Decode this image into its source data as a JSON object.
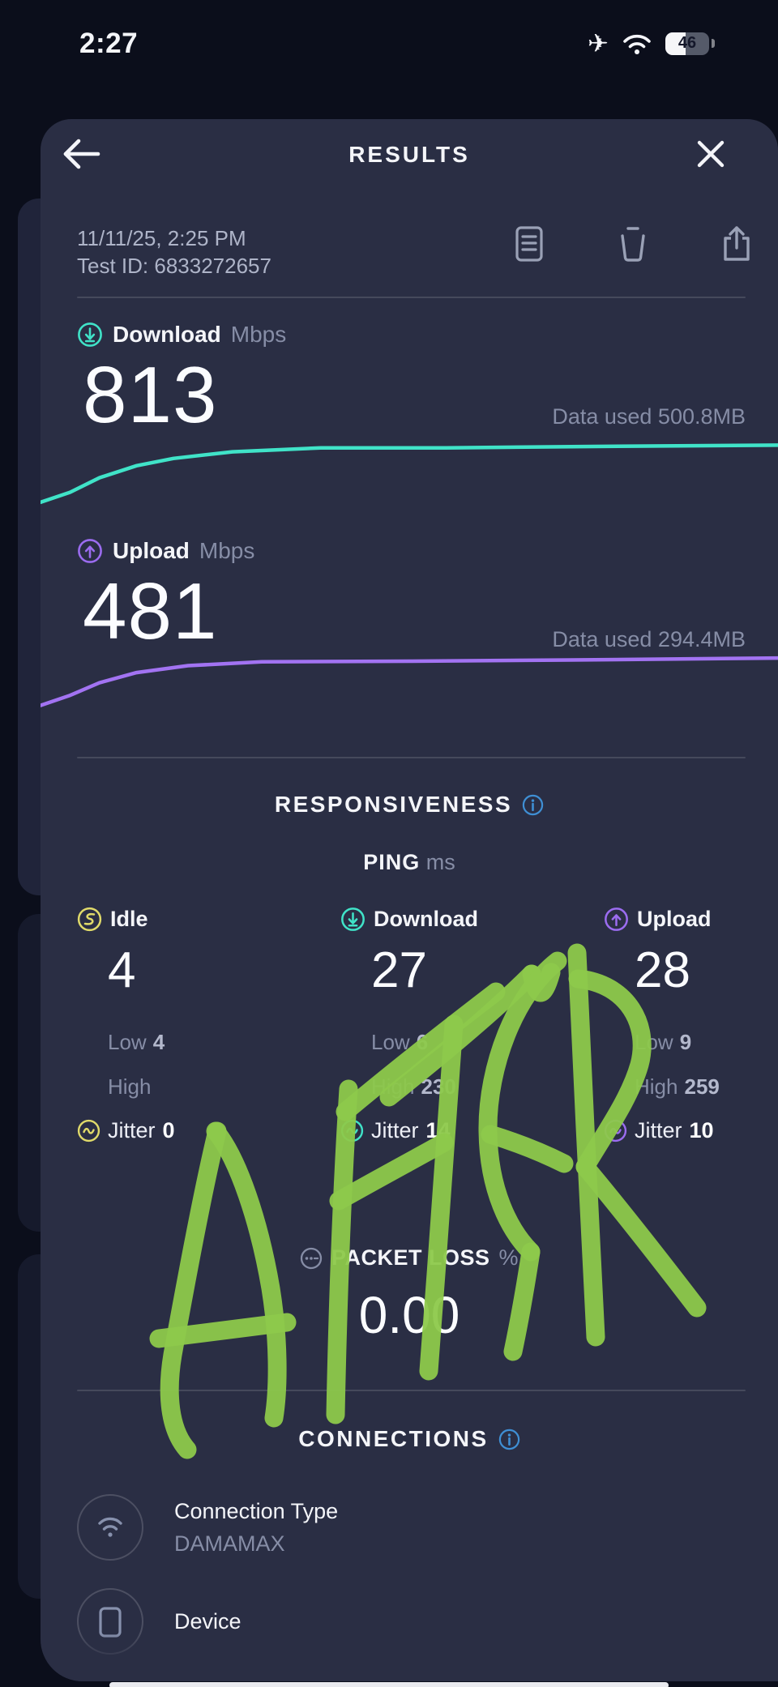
{
  "status_bar": {
    "time": "2:27",
    "battery_percent": "46"
  },
  "header": {
    "title": "RESULTS"
  },
  "meta": {
    "date": "11/11/25, 2:25 PM",
    "test_id": "Test ID: 6833272657"
  },
  "download": {
    "label": "Download",
    "unit": "Mbps",
    "value": "813",
    "data_used": "Data used 500.8MB"
  },
  "upload": {
    "label": "Upload",
    "unit": "Mbps",
    "value": "481",
    "data_used": "Data used 294.4MB"
  },
  "responsiveness": {
    "title": "RESPONSIVENESS",
    "ping_label": "PING",
    "ping_unit": "ms",
    "columns": [
      {
        "label": "Idle",
        "value": "4",
        "low_label": "Low",
        "low": "4",
        "high_label": "High",
        "high": "",
        "jitter_label": "Jitter",
        "jitter": "0"
      },
      {
        "label": "Download",
        "value": "27",
        "low_label": "Low",
        "low": "6",
        "high_label": "High",
        "high": "230",
        "jitter_label": "Jitter",
        "jitter": "14"
      },
      {
        "label": "Upload",
        "value": "28",
        "low_label": "Low",
        "low": "9",
        "high_label": "High",
        "high": "259",
        "jitter_label": "Jitter",
        "jitter": "10"
      }
    ],
    "packet_loss_label": "PACKET LOSS",
    "packet_loss_unit": "%",
    "packet_loss_value": "0.00"
  },
  "connections": {
    "title": "CONNECTIONS",
    "rows": [
      {
        "label": "Connection Type",
        "value": "DAMAMAX"
      },
      {
        "label": "Device",
        "value": ""
      }
    ]
  },
  "colors": {
    "background": "#0b0e1b",
    "card": "#2a2e44",
    "teal": "#40e3c8",
    "purple": "#a273f2",
    "yellow": "#e0da6a",
    "info_blue": "#3f8fd4",
    "annotation_green": "#8dc94b"
  },
  "chart_data": [
    {
      "type": "line",
      "name": "download-speed-curve",
      "color": "#40e3c8",
      "points": [
        [
          0,
          95
        ],
        [
          4,
          80
        ],
        [
          8,
          58
        ],
        [
          13,
          40
        ],
        [
          18,
          29
        ],
        [
          26,
          19
        ],
        [
          38,
          13
        ],
        [
          55,
          13
        ],
        [
          75,
          11
        ],
        [
          100,
          9
        ]
      ]
    },
    {
      "type": "line",
      "name": "upload-speed-curve",
      "color": "#a273f2",
      "points": [
        [
          0,
          88
        ],
        [
          4,
          72
        ],
        [
          8,
          52
        ],
        [
          13,
          36
        ],
        [
          20,
          25
        ],
        [
          30,
          19
        ],
        [
          50,
          18
        ],
        [
          72,
          16
        ],
        [
          100,
          13
        ]
      ]
    }
  ],
  "annotation": {
    "text": "AFTER",
    "color": "#8dc94b",
    "stroke_width": 23,
    "strokes": [
      "M 268,1396 C 250,1470 228,1590 213,1672 C 205,1720 209,1764 231,1789",
      "M 266,1396 C 294,1430 320,1508 334,1590 C 344,1652 344,1712 338,1750",
      "M 196,1652 C 252,1645 308,1638 354,1632",
      "M 430,1344 C 423,1452 417,1600 414,1746",
      "M 426,1372 C 486,1322 552,1270 612,1224",
      "M 418,1482 C 464,1456 516,1428 548,1410",
      "M 480,1354 C 540,1306 606,1252 656,1202",
      "M 560,1264 C 551,1396 540,1548 529,1692",
      "M 656,1202 C 662,1230 670,1236 680,1200",
      "M 688,1186 C 634,1228 602,1318 602,1392 C 602,1470 630,1520 655,1545",
      "M 655,1545 C 648,1590 640,1635 633,1668",
      "M 605,1400 C 644,1412 672,1424 696,1436",
      "M 712,1176 C 719,1330 727,1500 735,1650",
      "M 713,1208 C 775,1214 802,1266 789,1314 C 777,1356 748,1396 722,1440",
      "M 722,1440 C 764,1490 814,1554 860,1614"
    ]
  }
}
